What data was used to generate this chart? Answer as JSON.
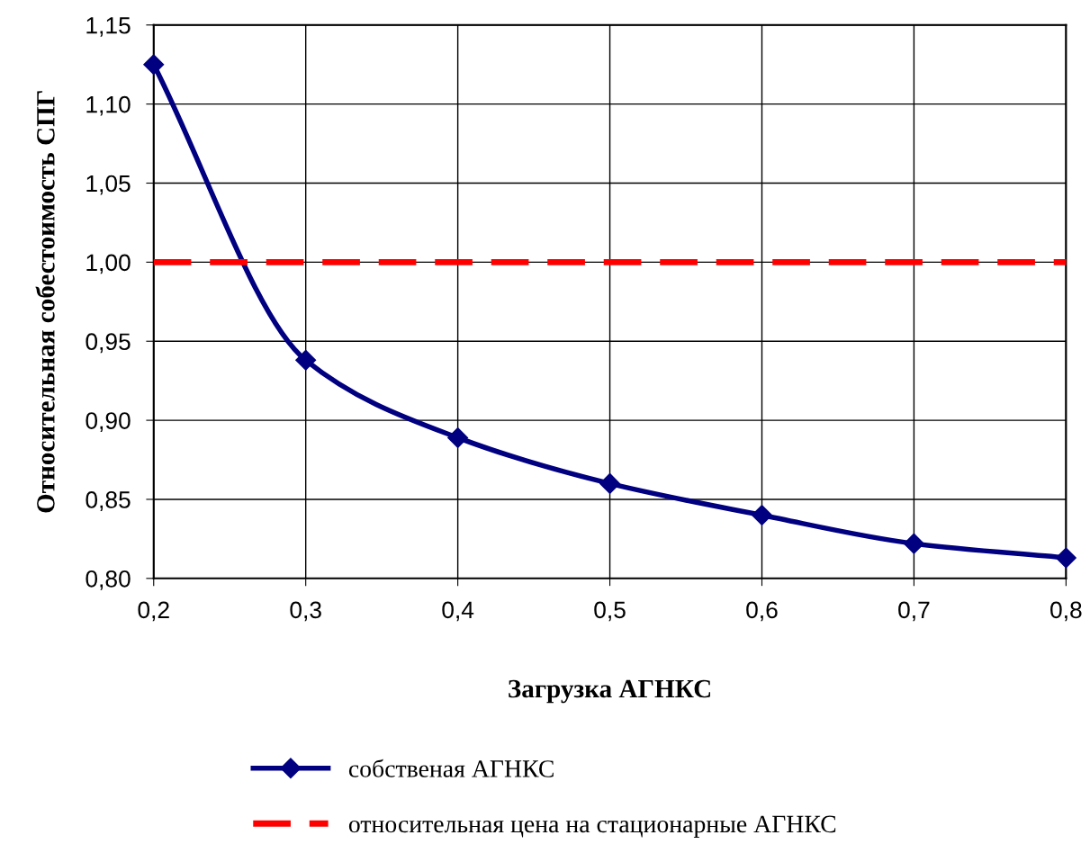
{
  "chart_data": {
    "type": "line",
    "xlabel": "Загрузка АГНКС",
    "ylabel": "Относительная собестоимость СПГ",
    "xlim": [
      0.2,
      0.8
    ],
    "xticks": [
      {
        "value": 0.2,
        "label": "0,2"
      },
      {
        "value": 0.3,
        "label": "0,3"
      },
      {
        "value": 0.4,
        "label": "0,4"
      },
      {
        "value": 0.5,
        "label": "0,5"
      },
      {
        "value": 0.6,
        "label": "0,6"
      },
      {
        "value": 0.7,
        "label": "0,7"
      },
      {
        "value": 0.8,
        "label": "0,8"
      }
    ],
    "ylim": [
      0.8,
      1.15
    ],
    "yticks": [
      {
        "value": 0.8,
        "label": "0,80"
      },
      {
        "value": 0.85,
        "label": "0,85"
      },
      {
        "value": 0.9,
        "label": "0,90"
      },
      {
        "value": 0.95,
        "label": "0,95"
      },
      {
        "value": 1.0,
        "label": "1,00"
      },
      {
        "value": 1.05,
        "label": "1,05"
      },
      {
        "value": 1.1,
        "label": "1,10"
      },
      {
        "value": 1.15,
        "label": "1,15"
      }
    ],
    "grid": true,
    "legend": "bottom",
    "series": [
      {
        "name": "собственая АГНКС",
        "color": "#000080",
        "marker": "diamond",
        "line_style": "solid",
        "x": [
          0.2,
          0.3,
          0.4,
          0.5,
          0.6,
          0.7,
          0.8
        ],
        "values": [
          1.125,
          0.938,
          0.889,
          0.86,
          0.84,
          0.822,
          0.813
        ]
      },
      {
        "name": "относительная цена на стационарные АГНКС",
        "color": "#ff0000",
        "marker": "none",
        "line_style": "dashed",
        "x": [
          0.2,
          0.8
        ],
        "values": [
          1.0,
          1.0
        ]
      }
    ]
  }
}
